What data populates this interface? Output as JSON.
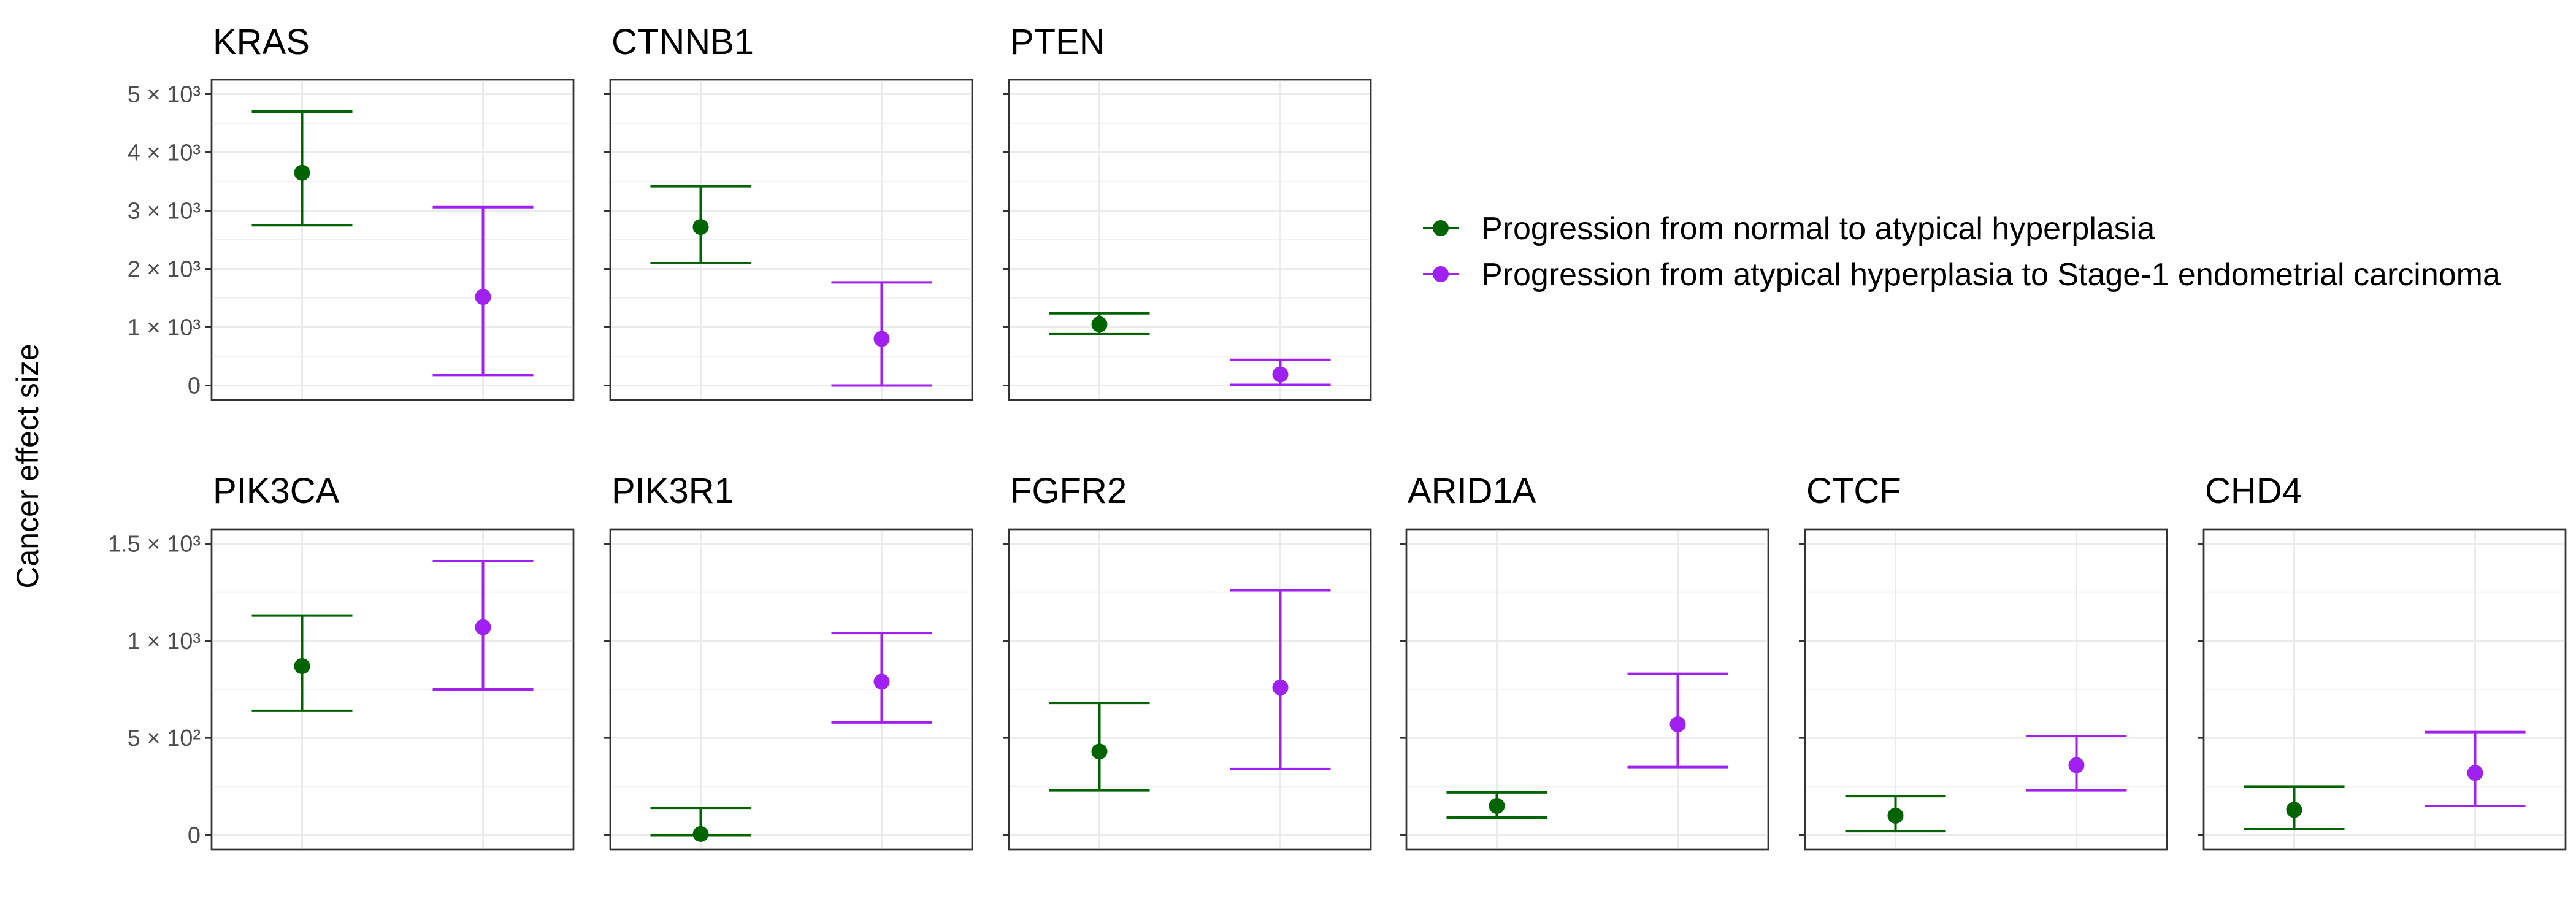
{
  "chart_data": {
    "type": "scatter",
    "ylabel": "Cancer effect size",
    "xlabel": "",
    "legend": {
      "placement": "right-top"
    },
    "colors": {
      "normal_to_ah": "#006400",
      "ah_to_stage1": "#A020F0"
    },
    "series": [
      {
        "key": "normal_to_ah",
        "name": "Progression from normal to atypical hyperplasia"
      },
      {
        "key": "ah_to_stage1",
        "name": "Progression from atypical hyperplasia to Stage-1 endometrial carcinoma"
      }
    ],
    "rows": [
      {
        "ylim": [
          0,
          5000
        ],
        "yticks": [
          {
            "value": 0,
            "label": "0"
          },
          {
            "value": 1000,
            "label": "1 × 10³"
          },
          {
            "value": 2000,
            "label": "2 × 10³"
          },
          {
            "value": 3000,
            "label": "3 × 10³"
          },
          {
            "value": 4000,
            "label": "4 × 10³"
          },
          {
            "value": 5000,
            "label": "5 × 10³"
          }
        ],
        "panels": [
          {
            "gene": "KRAS",
            "points": [
              {
                "series": "normal_to_ah",
                "y": 3650,
                "low": 2750,
                "high": 4700
              },
              {
                "series": "ah_to_stage1",
                "y": 1520,
                "low": 180,
                "high": 3060
              }
            ]
          },
          {
            "gene": "CTNNB1",
            "points": [
              {
                "series": "normal_to_ah",
                "y": 2720,
                "low": 2100,
                "high": 3420
              },
              {
                "series": "ah_to_stage1",
                "y": 800,
                "low": 0,
                "high": 1770
              }
            ]
          },
          {
            "gene": "PTEN",
            "points": [
              {
                "series": "normal_to_ah",
                "y": 1050,
                "low": 880,
                "high": 1240
              },
              {
                "series": "ah_to_stage1",
                "y": 190,
                "low": 10,
                "high": 440
              }
            ]
          }
        ]
      },
      {
        "ylim": [
          0,
          1500
        ],
        "yticks": [
          {
            "value": 0,
            "label": "0"
          },
          {
            "value": 500,
            "label": "5 × 10²"
          },
          {
            "value": 1000,
            "label": "1 × 10³"
          },
          {
            "value": 1500,
            "label": "1.5 × 10³"
          }
        ],
        "panels": [
          {
            "gene": "PIK3CA",
            "points": [
              {
                "series": "normal_to_ah",
                "y": 870,
                "low": 640,
                "high": 1130
              },
              {
                "series": "ah_to_stage1",
                "y": 1070,
                "low": 750,
                "high": 1410
              }
            ]
          },
          {
            "gene": "PIK3R1",
            "points": [
              {
                "series": "normal_to_ah",
                "y": 5,
                "low": 0,
                "high": 140
              },
              {
                "series": "ah_to_stage1",
                "y": 790,
                "low": 580,
                "high": 1040
              }
            ]
          },
          {
            "gene": "FGFR2",
            "points": [
              {
                "series": "normal_to_ah",
                "y": 430,
                "low": 230,
                "high": 680
              },
              {
                "series": "ah_to_stage1",
                "y": 760,
                "low": 340,
                "high": 1260
              }
            ]
          },
          {
            "gene": "ARID1A",
            "points": [
              {
                "series": "normal_to_ah",
                "y": 150,
                "low": 90,
                "high": 220
              },
              {
                "series": "ah_to_stage1",
                "y": 570,
                "low": 350,
                "high": 830
              }
            ]
          },
          {
            "gene": "CTCF",
            "points": [
              {
                "series": "normal_to_ah",
                "y": 100,
                "low": 20,
                "high": 200
              },
              {
                "series": "ah_to_stage1",
                "y": 360,
                "low": 230,
                "high": 510
              }
            ]
          },
          {
            "gene": "CHD4",
            "points": [
              {
                "series": "normal_to_ah",
                "y": 130,
                "low": 30,
                "high": 250
              },
              {
                "series": "ah_to_stage1",
                "y": 320,
                "low": 150,
                "high": 530
              }
            ]
          }
        ]
      }
    ]
  }
}
